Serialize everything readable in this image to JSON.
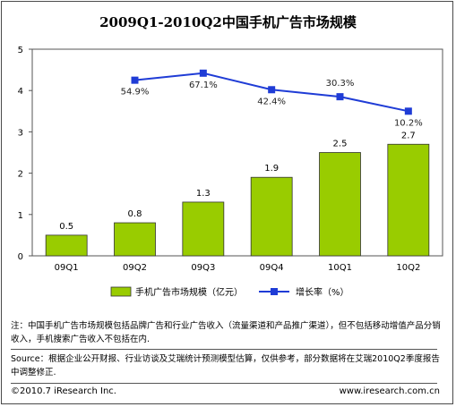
{
  "title": "2009Q1-2010Q2中国手机广告市场规模",
  "chart_data": {
    "type": "bar+line",
    "categories": [
      "09Q1",
      "09Q2",
      "09Q3",
      "09Q4",
      "10Q1",
      "10Q2"
    ],
    "bar_series": {
      "name": "手机广告市场规模（亿元）",
      "values": [
        0.5,
        0.8,
        1.3,
        1.9,
        2.5,
        2.7
      ],
      "labels": [
        "0.5",
        "0.8",
        "1.3",
        "1.9",
        "2.5",
        "2.7"
      ],
      "color": "#99cc00"
    },
    "line_series": {
      "name": "增长率（%）",
      "categories": [
        "09Q2",
        "09Q3",
        "09Q4",
        "10Q1",
        "10Q2"
      ],
      "values": [
        54.9,
        67.1,
        42.4,
        30.3,
        10.2
      ],
      "labels": [
        "54.9%",
        "67.1%",
        "42.4%",
        "30.3%",
        "10.2%"
      ],
      "plotted_left_axis": [
        4.25,
        4.42,
        4.02,
        3.85,
        3.5
      ],
      "color": "#1f3cd6"
    },
    "ylim": [
      0,
      5
    ],
    "yticks": [
      "0",
      "1",
      "2",
      "3",
      "4",
      "5"
    ],
    "legend_position": "bottom",
    "grid": false
  },
  "notes": {
    "note": "注：中国手机广告市场规模包括品牌广告和行业广告收入（流量渠道和产品推广渠道），但不包括移动增值产品分销收入，手机搜索广告收入不包括在内.",
    "source": "Source：根据企业公开财报、行业访谈及艾瑞统计预测模型估算，仅供参考，部分数据将在艾瑞2010Q2季度报告中调整修正."
  },
  "footer": {
    "copyright": "©2010.7 iResearch Inc.",
    "website": "www.iresearch.com.cn"
  }
}
